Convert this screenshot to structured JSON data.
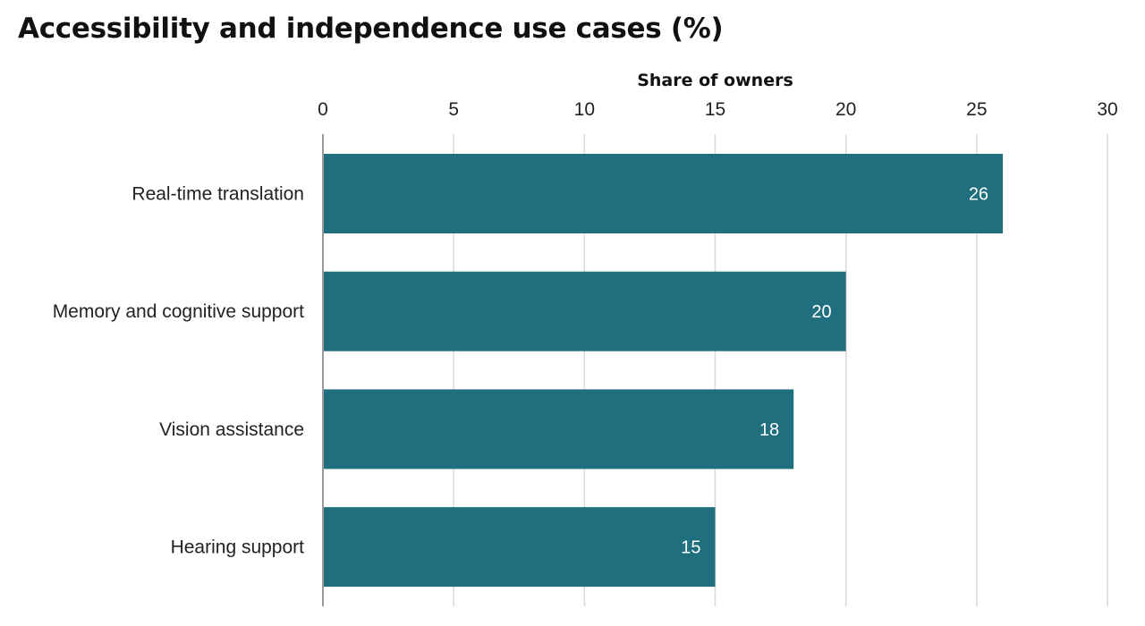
{
  "chart_data": {
    "type": "bar",
    "orientation": "horizontal",
    "title": "Accessibility and independence use cases (%)",
    "xlabel": "Share of owners",
    "ylabel": "",
    "categories": [
      "Real-time translation",
      "Memory and cognitive support",
      "Vision assistance",
      "Hearing support"
    ],
    "values": [
      26,
      20,
      18,
      15
    ],
    "data_labels": [
      "26",
      "20",
      "18",
      "15"
    ],
    "xlim": [
      0,
      30
    ],
    "x_ticks": [
      0,
      5,
      10,
      15,
      20,
      25,
      30
    ],
    "x_tick_labels": [
      "0",
      "5",
      "10",
      "15",
      "20",
      "25",
      "30"
    ],
    "x_axis_position": "top",
    "grid": true,
    "legend": "none",
    "bar_color": "#1f6f7f",
    "grid_color": "#d9d9d9",
    "baseline_color": "#999999"
  }
}
